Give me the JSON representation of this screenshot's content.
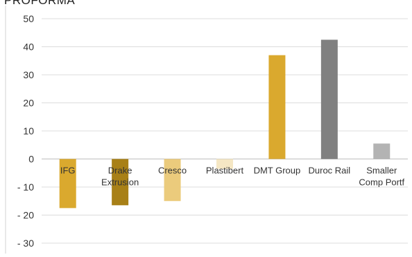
{
  "chart_data": {
    "type": "bar",
    "title": "PROFORMA",
    "categories": [
      "IFG",
      "Drake Extrusion",
      "Cresco",
      "Plastibert",
      "DMT Group",
      "Duroc Rail",
      "Smaller Comp Portf"
    ],
    "category_lines": [
      [
        "IFG"
      ],
      [
        "Drake",
        "Extrusion"
      ],
      [
        "Cresco"
      ],
      [
        "Plastibert"
      ],
      [
        "DMT Group"
      ],
      [
        "Duroc Rail"
      ],
      [
        "Smaller",
        "Comp Portf"
      ]
    ],
    "values": [
      -17.5,
      -16.5,
      -15.0,
      -3.5,
      37.0,
      42.5,
      5.5
    ],
    "colors": [
      "#DAA92E",
      "#A88017",
      "#EBCB7C",
      "#F5E7C4",
      "#DAA92E",
      "#808080",
      "#B3B3B3"
    ],
    "ylim": [
      -30,
      50
    ],
    "yticks": [
      -30,
      -20,
      -10,
      0,
      10,
      20,
      30,
      40,
      50
    ],
    "ytick_labels": [
      "- 30",
      "- 20",
      "- 10",
      "0",
      "10",
      "20",
      "30",
      "40",
      "50"
    ],
    "xlabel": "",
    "ylabel": "",
    "grid": true,
    "legend": "none"
  }
}
